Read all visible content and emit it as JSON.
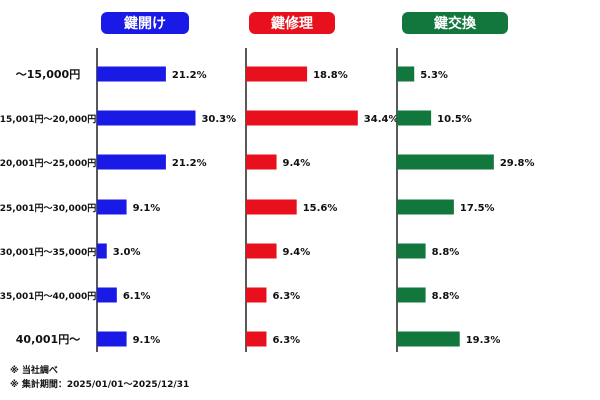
{
  "chart_data": {
    "type": "bar",
    "orientation": "horizontal",
    "categories": [
      "～15,000円",
      "15,001円～20,000円",
      "20,001円～25,000円",
      "25,001円～30,000円",
      "30,001円～35,000円",
      "35,001円～40,000円",
      "40,001円～"
    ],
    "series": [
      {
        "name": "鍵開け",
        "color": "#1a1ae6",
        "values": [
          21.2,
          30.3,
          21.2,
          9.1,
          3.0,
          6.1,
          9.1
        ],
        "labels": [
          "21.2%",
          "30.3%",
          "21.2%",
          "9.1%",
          "3.0%",
          "6.1%",
          "9.1%"
        ]
      },
      {
        "name": "鍵修理",
        "color": "#e8101c",
        "values": [
          18.8,
          34.4,
          9.4,
          15.6,
          9.4,
          6.3,
          6.3
        ],
        "labels": [
          "18.8%",
          "34.4%",
          "9.4%",
          "15.6%",
          "9.4%",
          "6.3%",
          "6.3%"
        ]
      },
      {
        "name": "鍵交換",
        "color": "#12773c",
        "values": [
          5.3,
          10.5,
          29.8,
          17.5,
          8.8,
          8.8,
          19.3
        ],
        "labels": [
          "5.3%",
          "10.5%",
          "29.8%",
          "17.5%",
          "8.8%",
          "8.8%",
          "19.3%"
        ]
      }
    ],
    "notes": [
      "※ 当社調べ",
      "※ 集計期間：2025/01/01～2025/12/31"
    ]
  }
}
